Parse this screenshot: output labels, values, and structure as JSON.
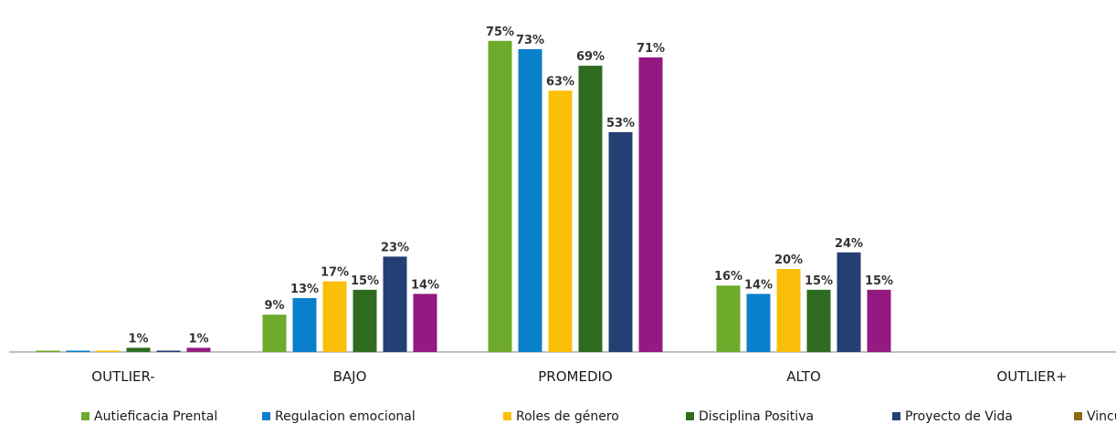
{
  "chart_data": {
    "type": "bar",
    "title": "",
    "xlabel": "",
    "ylabel": "",
    "ylim": [
      0,
      80
    ],
    "grid": false,
    "legend_position": "bottom",
    "categories": [
      "OUTLIER-",
      "BAJO",
      "PROMEDIO",
      "ALTO",
      "OUTLIER+"
    ],
    "series": [
      {
        "name": "Autieficacia Prental",
        "color": "#6eab2b",
        "values": [
          0.2,
          9,
          75,
          16,
          0
        ],
        "labels": [
          "",
          "9%",
          "75%",
          "16%",
          ""
        ]
      },
      {
        "name": "Regulacion emocional",
        "color": "#0a7fcb",
        "values": [
          0.2,
          13,
          73,
          14,
          0
        ],
        "labels": [
          "",
          "13%",
          "73%",
          "14%",
          ""
        ]
      },
      {
        "name": "Roles de género",
        "color": "#fbbf0a",
        "values": [
          0.2,
          17,
          63,
          20,
          0
        ],
        "labels": [
          "",
          "17%",
          "63%",
          "20%",
          ""
        ]
      },
      {
        "name": "Disciplina Positiva",
        "color": "#2e6b20",
        "values": [
          1,
          15,
          69,
          15,
          0
        ],
        "labels": [
          "1%",
          "15%",
          "69%",
          "15%",
          ""
        ]
      },
      {
        "name": "Proyecto de Vida",
        "color": "#233f73",
        "values": [
          0.2,
          23,
          53,
          24,
          0
        ],
        "labels": [
          "",
          "23%",
          "53%",
          "24%",
          ""
        ]
      },
      {
        "name": "Vinculación",
        "color": "#931a80",
        "legend_color": "#8d6a12",
        "values": [
          1,
          14,
          71,
          15,
          0
        ],
        "labels": [
          "1%",
          "14%",
          "71%",
          "15%",
          ""
        ]
      }
    ]
  }
}
